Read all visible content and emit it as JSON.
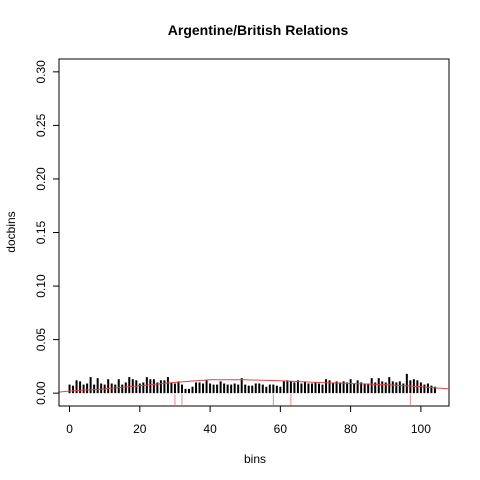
{
  "chart_data": {
    "type": "bar",
    "title": "Argentine/British Relations",
    "xlabel": "bins",
    "ylabel": "docbins",
    "xlim": [
      -3,
      108
    ],
    "ylim": [
      -0.012,
      0.312
    ],
    "xticks": [
      0,
      20,
      40,
      60,
      80,
      100
    ],
    "yticks": [
      0.0,
      0.05,
      0.1,
      0.15,
      0.2,
      0.25,
      0.3
    ],
    "xtick_labels": [
      "0",
      "20",
      "40",
      "60",
      "80",
      "100"
    ],
    "ytick_labels": [
      "0.00",
      "0.05",
      "0.10",
      "0.15",
      "0.20",
      "0.25",
      "0.30"
    ],
    "grid": false,
    "bars_color": "#000000",
    "trend_color": "#dd4444",
    "rug_color": "#ee8888",
    "x": [
      0,
      1,
      2,
      3,
      4,
      5,
      6,
      7,
      8,
      9,
      10,
      11,
      12,
      13,
      14,
      15,
      16,
      17,
      18,
      19,
      20,
      21,
      22,
      23,
      24,
      25,
      26,
      27,
      28,
      29,
      30,
      31,
      32,
      33,
      34,
      35,
      36,
      37,
      38,
      39,
      40,
      41,
      42,
      43,
      44,
      45,
      46,
      47,
      48,
      49,
      50,
      51,
      52,
      53,
      54,
      55,
      56,
      57,
      58,
      59,
      60,
      61,
      62,
      63,
      64,
      65,
      66,
      67,
      68,
      69,
      70,
      71,
      72,
      73,
      74,
      75,
      76,
      77,
      78,
      79,
      80,
      81,
      82,
      83,
      84,
      85,
      86,
      87,
      88,
      89,
      90,
      91,
      92,
      93,
      94,
      95,
      96,
      97,
      98,
      99,
      100,
      101,
      102,
      103,
      104
    ],
    "values": [
      0.008,
      0.007,
      0.012,
      0.011,
      0.008,
      0.009,
      0.015,
      0.008,
      0.014,
      0.009,
      0.008,
      0.013,
      0.009,
      0.008,
      0.013,
      0.008,
      0.01,
      0.015,
      0.013,
      0.012,
      0.009,
      0.01,
      0.015,
      0.013,
      0.013,
      0.01,
      0.012,
      0.012,
      0.015,
      0.01,
      0.009,
      0.011,
      0.008,
      0.004,
      0.004,
      0.006,
      0.01,
      0.01,
      0.009,
      0.012,
      0.009,
      0.008,
      0.008,
      0.011,
      0.009,
      0.008,
      0.008,
      0.009,
      0.008,
      0.014,
      0.008,
      0.007,
      0.007,
      0.009,
      0.009,
      0.008,
      0.006,
      0.008,
      0.008,
      0.007,
      0.006,
      0.011,
      0.012,
      0.011,
      0.01,
      0.012,
      0.009,
      0.011,
      0.009,
      0.009,
      0.01,
      0.009,
      0.008,
      0.013,
      0.012,
      0.01,
      0.011,
      0.01,
      0.011,
      0.01,
      0.013,
      0.009,
      0.012,
      0.01,
      0.009,
      0.009,
      0.014,
      0.01,
      0.014,
      0.011,
      0.01,
      0.015,
      0.011,
      0.01,
      0.011,
      0.009,
      0.018,
      0.012,
      0.013,
      0.012,
      0.01,
      0.008,
      0.009,
      0.007,
      0.006
    ],
    "trend": [
      [
        -3,
        0.001
      ],
      [
        0,
        0.002
      ],
      [
        10,
        0.004
      ],
      [
        20,
        0.007
      ],
      [
        30,
        0.01
      ],
      [
        40,
        0.0125
      ],
      [
        50,
        0.0125
      ],
      [
        60,
        0.0115
      ],
      [
        70,
        0.01
      ],
      [
        80,
        0.009
      ],
      [
        90,
        0.008
      ],
      [
        100,
        0.006
      ],
      [
        108,
        0.004
      ]
    ],
    "rug": [
      30,
      32,
      58,
      63,
      97
    ]
  }
}
